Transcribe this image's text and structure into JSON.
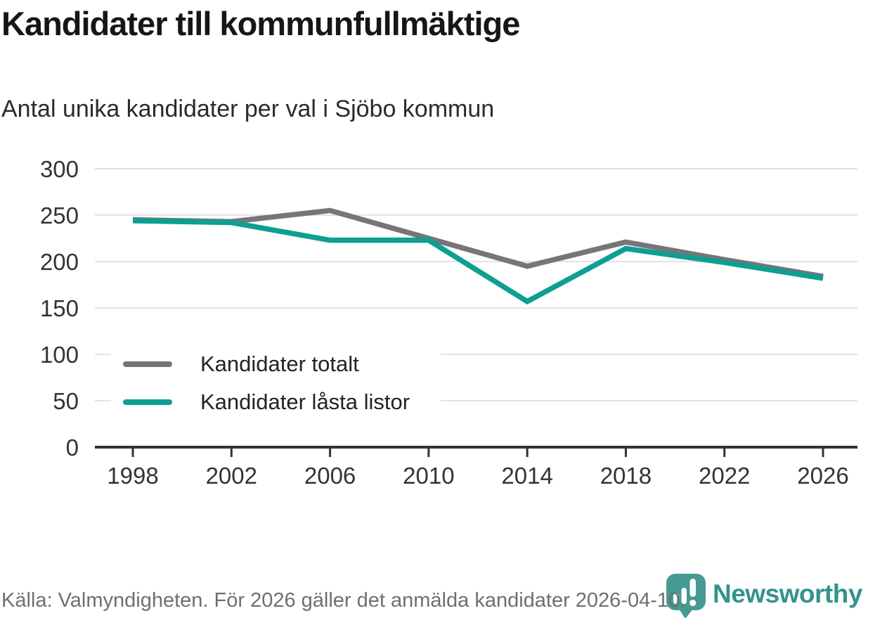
{
  "header": {
    "title": "Kandidater till kommunfullmäktige",
    "subtitle": "Antal unika kandidater per val i Sjöbo kommun"
  },
  "chart_data": {
    "type": "line",
    "x": [
      1998,
      2002,
      2006,
      2010,
      2014,
      2018,
      2022,
      2026
    ],
    "series": [
      {
        "name": "Kandidater totalt",
        "color": "#77747a",
        "values": [
          245,
          243,
          255,
          225,
          195,
          221,
          202,
          184
        ]
      },
      {
        "name": "Kandidater låsta listor",
        "color": "#0d9f92",
        "values": [
          244,
          242,
          223,
          223,
          157,
          214,
          199,
          182
        ]
      }
    ],
    "title": "Kandidater till kommunfullmäktige",
    "subtitle": "Antal unika kandidater per val i Sjöbo kommun",
    "xlabel": "",
    "ylabel": "",
    "ylim": [
      0,
      300
    ],
    "yticks": [
      0,
      50,
      100,
      150,
      200,
      250,
      300
    ],
    "grid": "horizontal",
    "legend_position": "inside-middle-left"
  },
  "footer": {
    "source": "Källa: Valmyndigheten. För 2026 gäller det anmälda kandidater 2026-04-10.",
    "brand": "Newsworthy"
  },
  "colors": {
    "series_total": "#77747a",
    "series_locked": "#0d9f92",
    "logo_teal": "#459a92",
    "wordmark_teal": "#33938b",
    "grid": "#e3e3e3",
    "axis": "#333333",
    "source_text": "#6f6f6f"
  }
}
